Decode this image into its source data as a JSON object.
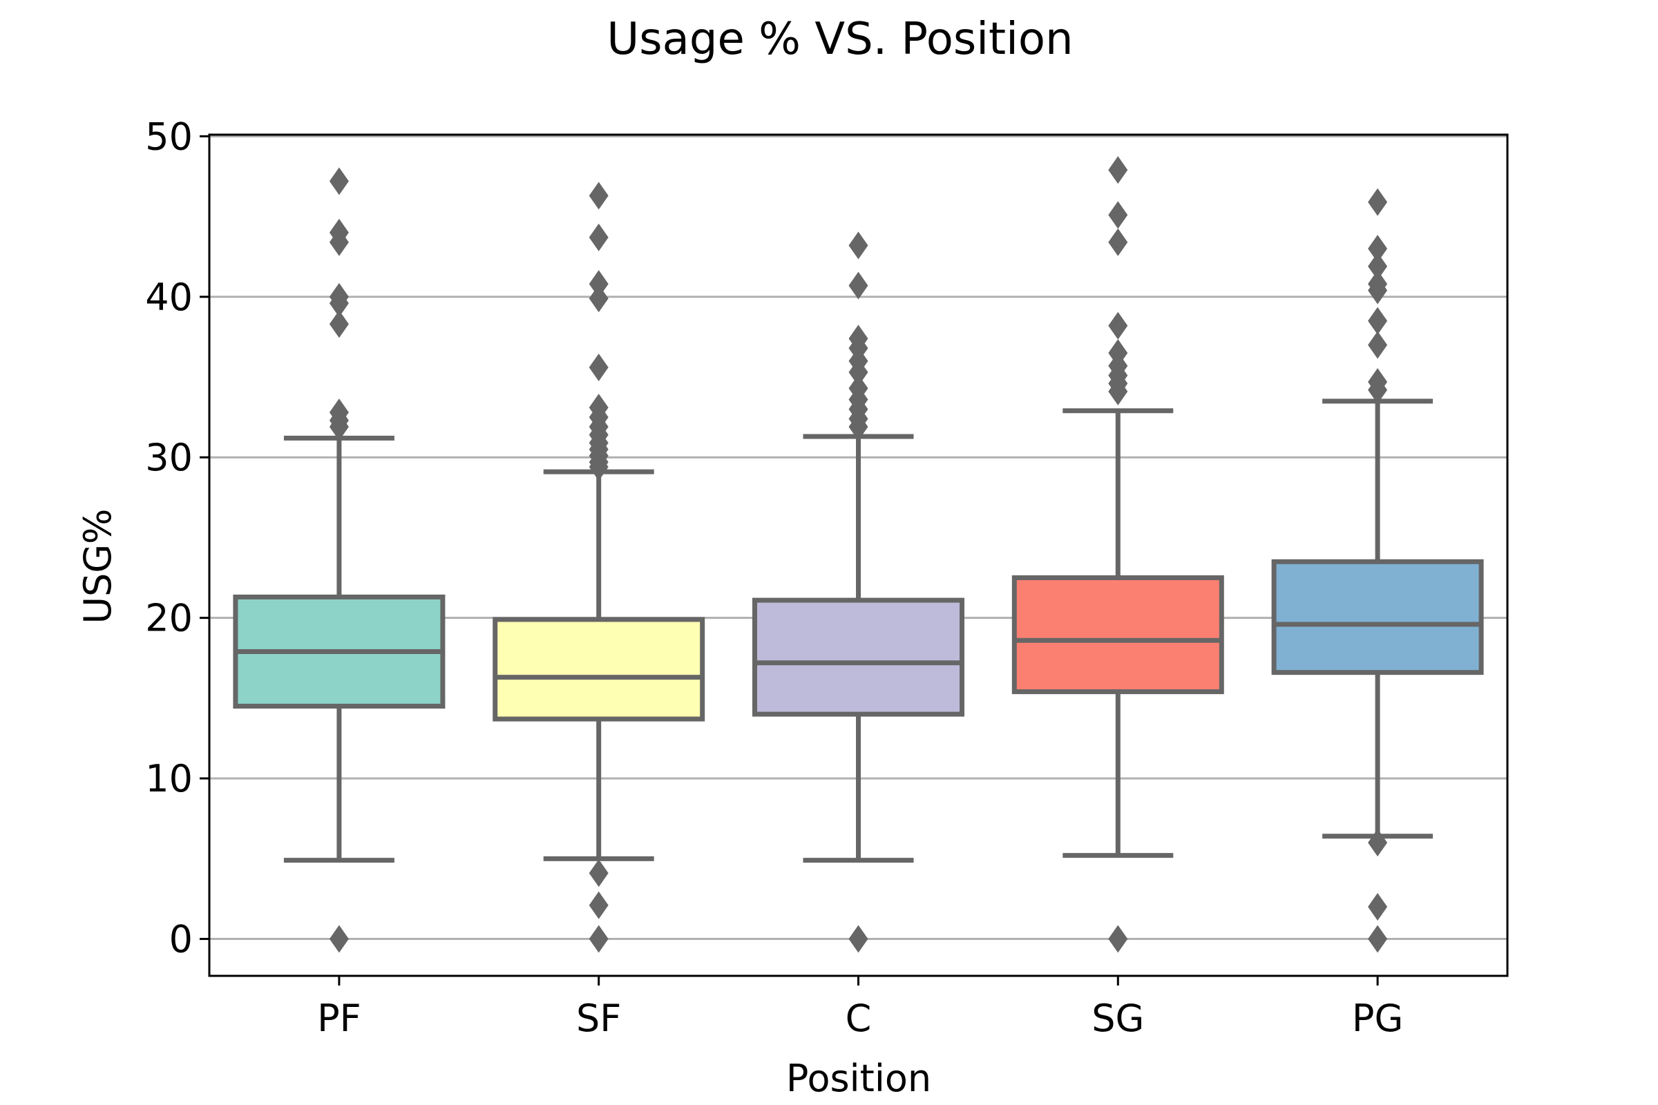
{
  "chart_data": {
    "type": "box",
    "title": "Usage % VS. Position",
    "xlabel": "Position",
    "ylabel": "USG%",
    "ylim": [
      -2.3,
      50.1
    ],
    "yticks": [
      0,
      10,
      20,
      30,
      40,
      50
    ],
    "grid": "horizontal",
    "categories": [
      "PF",
      "SF",
      "C",
      "SG",
      "PG"
    ],
    "boxes": [
      {
        "category": "PF",
        "color": "#8dd3c7",
        "whisker_low": 4.9,
        "q1": 14.5,
        "median": 17.9,
        "q3": 21.3,
        "whisker_high": 31.2,
        "outliers": [
          47.2,
          44.0,
          43.4,
          40.0,
          39.6,
          38.3,
          32.8,
          32.3,
          31.9,
          0.0
        ]
      },
      {
        "category": "SF",
        "color": "#ffffb3",
        "whisker_low": 5.0,
        "q1": 13.7,
        "median": 16.3,
        "q3": 19.9,
        "whisker_high": 29.1,
        "outliers": [
          46.3,
          43.7,
          40.8,
          39.9,
          35.6,
          33.1,
          32.5,
          31.9,
          31.4,
          30.9,
          30.5,
          30.1,
          29.7,
          29.4,
          4.1,
          2.1,
          0.0
        ]
      },
      {
        "category": "C",
        "color": "#bebada",
        "whisker_low": 4.9,
        "q1": 14.0,
        "median": 17.2,
        "q3": 21.1,
        "whisker_high": 31.3,
        "outliers": [
          43.2,
          40.7,
          37.4,
          36.8,
          36.0,
          35.3,
          34.3,
          33.6,
          33.0,
          32.4,
          31.9,
          0.0
        ]
      },
      {
        "category": "SG",
        "color": "#fb8072",
        "whisker_low": 5.2,
        "q1": 15.4,
        "median": 18.6,
        "q3": 22.5,
        "whisker_high": 32.9,
        "outliers": [
          47.9,
          45.1,
          43.4,
          38.2,
          36.5,
          35.7,
          35.1,
          34.6,
          34.1,
          0.0
        ]
      },
      {
        "category": "PG",
        "color": "#80b1d3",
        "whisker_low": 6.4,
        "q1": 16.6,
        "median": 19.6,
        "q3": 23.5,
        "whisker_high": 33.5,
        "outliers": [
          45.9,
          43.0,
          41.9,
          40.8,
          40.4,
          38.5,
          37.0,
          34.7,
          34.2,
          6.0,
          2.0,
          0.0
        ]
      }
    ],
    "styles": {
      "line_color": "#666666",
      "grid_color": "#b0b0b0",
      "axis_color": "#000000"
    }
  }
}
